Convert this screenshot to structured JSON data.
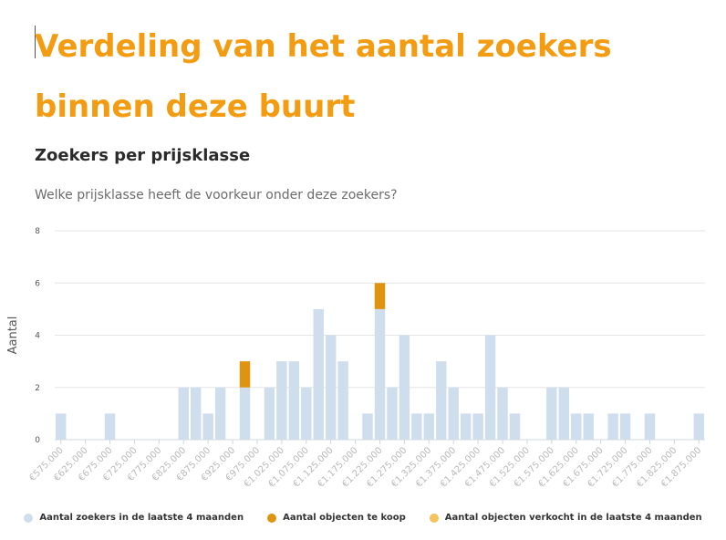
{
  "page": {
    "title": "Verdeling van het aantal zoekers binnen deze buurt",
    "subtitle": "Zoekers per prijsklasse",
    "question": "Welke prijsklasse heeft de voorkeur onder deze zoekers?"
  },
  "colors": {
    "title": "#f39c12",
    "searchers": "#cfdeec",
    "for_sale": "#e0930f",
    "sold": "#f5c35c"
  },
  "chart_data": {
    "type": "bar",
    "stacked": true,
    "ylabel": "Aantal",
    "ylim": [
      0,
      8
    ],
    "yticks": [
      "0",
      "2",
      "4",
      "6",
      "8"
    ],
    "grid": true,
    "legend_position": "bottom",
    "x": [
      575000,
      600000,
      625000,
      650000,
      675000,
      700000,
      725000,
      750000,
      775000,
      800000,
      825000,
      850000,
      875000,
      900000,
      925000,
      950000,
      975000,
      1000000,
      1025000,
      1050000,
      1075000,
      1100000,
      1125000,
      1150000,
      1175000,
      1200000,
      1225000,
      1250000,
      1275000,
      1300000,
      1325000,
      1350000,
      1375000,
      1400000,
      1425000,
      1450000,
      1475000,
      1500000,
      1525000,
      1550000,
      1575000,
      1600000,
      1625000,
      1650000,
      1675000,
      1700000,
      1725000,
      1750000,
      1775000,
      1800000,
      1825000,
      1850000,
      1875000
    ],
    "tick_labels": [
      "€575.000",
      "€625.000",
      "€675.000",
      "€725.000",
      "€775.000",
      "€825.000",
      "€875.000",
      "€925.000",
      "€975.000",
      "€1.025.000",
      "€1.075.000",
      "€1.125.000",
      "€1.175.000",
      "€1.225.000",
      "€1.275.000",
      "€1.325.000",
      "€1.375.000",
      "€1.425.000",
      "€1.475.000",
      "€1.525.000",
      "€1.575.000",
      "€1.625.000",
      "€1.675.000",
      "€1.725.000",
      "€1.775.000",
      "€1.825.000",
      "€1.875.000"
    ],
    "series": [
      {
        "name": "Aantal zoekers in de laatste 4 maanden",
        "values": [
          1,
          0,
          0,
          0,
          1,
          0,
          0,
          0,
          0,
          0,
          2,
          2,
          1,
          2,
          0,
          2,
          0,
          2,
          3,
          3,
          2,
          5,
          4,
          3,
          0,
          1,
          5,
          2,
          4,
          1,
          1,
          3,
          2,
          1,
          1,
          4,
          2,
          1,
          0,
          0,
          2,
          2,
          1,
          1,
          0,
          1,
          1,
          0,
          1,
          0,
          0,
          0,
          1
        ]
      },
      {
        "name": "Aantal objecten te koop",
        "values": [
          0,
          0,
          0,
          0,
          0,
          0,
          0,
          0,
          0,
          0,
          0,
          0,
          0,
          0,
          0,
          1,
          0,
          0,
          0,
          0,
          0,
          0,
          0,
          0,
          0,
          0,
          1,
          0,
          0,
          0,
          0,
          0,
          0,
          0,
          0,
          0,
          0,
          0,
          0,
          0,
          0,
          0,
          0,
          0,
          0,
          0,
          0,
          0,
          0,
          0,
          0,
          0,
          0
        ]
      },
      {
        "name": "Aantal objecten verkocht in de laatste 4 maanden",
        "values": [
          0,
          0,
          0,
          0,
          0,
          0,
          0,
          0,
          0,
          0,
          0,
          0,
          0,
          0,
          0,
          0,
          0,
          0,
          0,
          0,
          0,
          0,
          0,
          0,
          0,
          0,
          0,
          0,
          0,
          0,
          0,
          0,
          0,
          0,
          0,
          0,
          0,
          0,
          0,
          0,
          0,
          0,
          0,
          0,
          0,
          0,
          0,
          0,
          0,
          0,
          0,
          0,
          0
        ]
      }
    ]
  }
}
